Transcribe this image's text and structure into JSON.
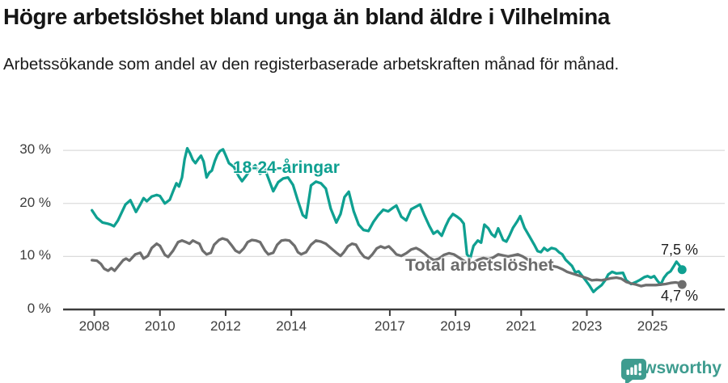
{
  "header": {
    "title": "Högre arbetslöshet bland unga än bland äldre i Vilhelmina",
    "subtitle": "Arbetssökande som andel av den registerbaserade arbetskraften månad för månad."
  },
  "chart_data": {
    "type": "line",
    "title": "Högre arbetslöshet bland unga än bland äldre i Vilhelmina",
    "subtitle": "Arbetssökande som andel av den registerbaserade arbetskraften månad för månad.",
    "unit": "%",
    "grid": true,
    "legend_position": "inline-labels",
    "xlim": [
      2007.05,
      2027.2
    ],
    "ylim": [
      0,
      32
    ],
    "yticks": [
      {
        "value": 0,
        "label": "0 %"
      },
      {
        "value": 10,
        "label": "10 %"
      },
      {
        "value": 20,
        "label": "20 %"
      },
      {
        "value": 30,
        "label": "30 %"
      }
    ],
    "xticks": [
      {
        "value": 2008,
        "label": "2008"
      },
      {
        "value": 2010,
        "label": "2010"
      },
      {
        "value": 2012,
        "label": "2012"
      },
      {
        "value": 2014,
        "label": "2014"
      },
      {
        "value": 2017,
        "label": "2017"
      },
      {
        "value": 2019,
        "label": "2019"
      },
      {
        "value": 2021,
        "label": "2021"
      },
      {
        "value": 2023,
        "label": "2023"
      },
      {
        "value": 2025,
        "label": "2025"
      }
    ],
    "colors": {
      "young": "#0FA091",
      "total": "#6E6E6E",
      "gridline": "#DBDBDB",
      "axis": "#3C3C3C"
    },
    "series": [
      {
        "name": "18-24-åringar",
        "color": "#0FA091",
        "end_label": "7,5 %",
        "end_value": 7.5,
        "points": [
          [
            2007.93,
            18.7
          ],
          [
            2008.08,
            17.3
          ],
          [
            2008.25,
            16.4
          ],
          [
            2008.4,
            16.2
          ],
          [
            2008.5,
            16.0
          ],
          [
            2008.6,
            15.7
          ],
          [
            2008.72,
            16.8
          ],
          [
            2008.85,
            18.5
          ],
          [
            2008.95,
            19.8
          ],
          [
            2009.1,
            20.6
          ],
          [
            2009.27,
            18.4
          ],
          [
            2009.4,
            19.8
          ],
          [
            2009.5,
            21.0
          ],
          [
            2009.6,
            20.4
          ],
          [
            2009.75,
            21.3
          ],
          [
            2009.9,
            21.6
          ],
          [
            2010.0,
            21.4
          ],
          [
            2010.15,
            20.0
          ],
          [
            2010.3,
            20.7
          ],
          [
            2010.4,
            22.3
          ],
          [
            2010.5,
            23.8
          ],
          [
            2010.58,
            23.2
          ],
          [
            2010.67,
            24.9
          ],
          [
            2010.75,
            28.3
          ],
          [
            2010.83,
            30.4
          ],
          [
            2010.92,
            29.4
          ],
          [
            2011.0,
            28.2
          ],
          [
            2011.08,
            27.6
          ],
          [
            2011.17,
            28.4
          ],
          [
            2011.25,
            29.0
          ],
          [
            2011.33,
            27.9
          ],
          [
            2011.42,
            24.9
          ],
          [
            2011.5,
            25.8
          ],
          [
            2011.58,
            26.2
          ],
          [
            2011.67,
            28.0
          ],
          [
            2011.75,
            29.2
          ],
          [
            2011.83,
            29.9
          ],
          [
            2011.92,
            30.2
          ],
          [
            2012.0,
            29.1
          ],
          [
            2012.1,
            27.6
          ],
          [
            2012.25,
            26.9
          ],
          [
            2012.4,
            25.1
          ],
          [
            2012.5,
            24.2
          ],
          [
            2012.6,
            25.0
          ],
          [
            2012.75,
            26.3
          ],
          [
            2012.9,
            27.2
          ],
          [
            2013.05,
            25.6
          ],
          [
            2013.2,
            26.4
          ],
          [
            2013.45,
            22.3
          ],
          [
            2013.6,
            24.0
          ],
          [
            2013.75,
            24.7
          ],
          [
            2013.9,
            24.9
          ],
          [
            2014.05,
            23.5
          ],
          [
            2014.2,
            20.5
          ],
          [
            2014.35,
            17.8
          ],
          [
            2014.45,
            17.3
          ],
          [
            2014.6,
            23.4
          ],
          [
            2014.75,
            24.1
          ],
          [
            2014.9,
            23.8
          ],
          [
            2015.05,
            22.8
          ],
          [
            2015.2,
            19.0
          ],
          [
            2015.37,
            16.4
          ],
          [
            2015.5,
            18.0
          ],
          [
            2015.62,
            21.2
          ],
          [
            2015.75,
            22.2
          ],
          [
            2015.9,
            18.5
          ],
          [
            2016.05,
            16.0
          ],
          [
            2016.2,
            15.0
          ],
          [
            2016.35,
            14.8
          ],
          [
            2016.5,
            16.5
          ],
          [
            2016.65,
            17.8
          ],
          [
            2016.8,
            18.8
          ],
          [
            2016.95,
            18.5
          ],
          [
            2017.1,
            19.2
          ],
          [
            2017.2,
            19.6
          ],
          [
            2017.35,
            17.5
          ],
          [
            2017.5,
            16.8
          ],
          [
            2017.65,
            18.9
          ],
          [
            2017.8,
            19.4
          ],
          [
            2017.92,
            19.8
          ],
          [
            2018.05,
            17.8
          ],
          [
            2018.2,
            15.8
          ],
          [
            2018.33,
            14.3
          ],
          [
            2018.45,
            14.8
          ],
          [
            2018.58,
            13.9
          ],
          [
            2018.7,
            15.7
          ],
          [
            2018.8,
            17.0
          ],
          [
            2018.92,
            18.0
          ],
          [
            2019.05,
            17.5
          ],
          [
            2019.15,
            17.0
          ],
          [
            2019.25,
            16.2
          ],
          [
            2019.35,
            10.4
          ],
          [
            2019.45,
            9.7
          ],
          [
            2019.55,
            12.0
          ],
          [
            2019.68,
            13.0
          ],
          [
            2019.78,
            12.6
          ],
          [
            2019.88,
            16.0
          ],
          [
            2020.0,
            15.3
          ],
          [
            2020.1,
            14.2
          ],
          [
            2020.2,
            13.7
          ],
          [
            2020.3,
            15.3
          ],
          [
            2020.45,
            13.1
          ],
          [
            2020.55,
            12.8
          ],
          [
            2020.65,
            14.0
          ],
          [
            2020.75,
            15.4
          ],
          [
            2020.88,
            16.6
          ],
          [
            2020.97,
            17.6
          ],
          [
            2021.1,
            15.4
          ],
          [
            2021.25,
            13.8
          ],
          [
            2021.4,
            12.2
          ],
          [
            2021.5,
            11.0
          ],
          [
            2021.6,
            10.8
          ],
          [
            2021.7,
            11.6
          ],
          [
            2021.8,
            11.1
          ],
          [
            2021.92,
            11.6
          ],
          [
            2022.05,
            11.4
          ],
          [
            2022.15,
            10.8
          ],
          [
            2022.25,
            10.4
          ],
          [
            2022.35,
            9.4
          ],
          [
            2022.45,
            8.8
          ],
          [
            2022.55,
            8.2
          ],
          [
            2022.65,
            7.0
          ],
          [
            2022.75,
            7.2
          ],
          [
            2022.85,
            6.4
          ],
          [
            2022.95,
            5.6
          ],
          [
            2023.07,
            4.6
          ],
          [
            2023.2,
            3.3
          ],
          [
            2023.3,
            3.9
          ],
          [
            2023.45,
            4.6
          ],
          [
            2023.57,
            5.6
          ],
          [
            2023.65,
            6.6
          ],
          [
            2023.77,
            7.1
          ],
          [
            2023.9,
            6.8
          ],
          [
            2024.1,
            6.9
          ],
          [
            2024.2,
            5.5
          ],
          [
            2024.35,
            4.8
          ],
          [
            2024.5,
            5.2
          ],
          [
            2024.62,
            5.6
          ],
          [
            2024.75,
            6.1
          ],
          [
            2024.85,
            6.3
          ],
          [
            2024.95,
            6.0
          ],
          [
            2025.05,
            6.3
          ],
          [
            2025.15,
            5.4
          ],
          [
            2025.25,
            4.7
          ],
          [
            2025.35,
            6.0
          ],
          [
            2025.45,
            6.8
          ],
          [
            2025.55,
            7.2
          ],
          [
            2025.65,
            8.2
          ],
          [
            2025.73,
            9.0
          ],
          [
            2025.82,
            8.3
          ],
          [
            2025.9,
            7.5
          ]
        ]
      },
      {
        "name": "Total arbetslöshet",
        "color": "#6E6E6E",
        "end_label": "4,7 %",
        "end_value": 4.7,
        "points": [
          [
            2007.93,
            9.3
          ],
          [
            2008.08,
            9.2
          ],
          [
            2008.2,
            8.6
          ],
          [
            2008.3,
            7.7
          ],
          [
            2008.42,
            7.3
          ],
          [
            2008.52,
            7.8
          ],
          [
            2008.62,
            7.3
          ],
          [
            2008.75,
            8.3
          ],
          [
            2008.88,
            9.3
          ],
          [
            2008.97,
            9.6
          ],
          [
            2009.07,
            9.2
          ],
          [
            2009.25,
            10.4
          ],
          [
            2009.4,
            10.7
          ],
          [
            2009.5,
            9.6
          ],
          [
            2009.63,
            10.1
          ],
          [
            2009.75,
            11.6
          ],
          [
            2009.9,
            12.4
          ],
          [
            2010.0,
            12.0
          ],
          [
            2010.15,
            10.3
          ],
          [
            2010.25,
            9.9
          ],
          [
            2010.4,
            11.1
          ],
          [
            2010.55,
            12.7
          ],
          [
            2010.67,
            13.0
          ],
          [
            2010.8,
            12.7
          ],
          [
            2010.9,
            12.4
          ],
          [
            2011.0,
            13.0
          ],
          [
            2011.1,
            12.7
          ],
          [
            2011.2,
            12.4
          ],
          [
            2011.3,
            11.1
          ],
          [
            2011.42,
            10.4
          ],
          [
            2011.55,
            10.7
          ],
          [
            2011.65,
            12.2
          ],
          [
            2011.8,
            13.1
          ],
          [
            2011.9,
            13.4
          ],
          [
            2012.05,
            13.1
          ],
          [
            2012.17,
            12.2
          ],
          [
            2012.3,
            11.1
          ],
          [
            2012.42,
            10.7
          ],
          [
            2012.55,
            11.5
          ],
          [
            2012.67,
            12.7
          ],
          [
            2012.8,
            13.1
          ],
          [
            2012.92,
            13.0
          ],
          [
            2013.05,
            12.7
          ],
          [
            2013.2,
            11.1
          ],
          [
            2013.3,
            10.4
          ],
          [
            2013.45,
            10.7
          ],
          [
            2013.57,
            12.2
          ],
          [
            2013.7,
            13.0
          ],
          [
            2013.82,
            13.1
          ],
          [
            2013.94,
            13.0
          ],
          [
            2014.1,
            12.0
          ],
          [
            2014.2,
            10.8
          ],
          [
            2014.3,
            10.4
          ],
          [
            2014.45,
            10.8
          ],
          [
            2014.6,
            12.2
          ],
          [
            2014.75,
            13.0
          ],
          [
            2014.9,
            12.8
          ],
          [
            2015.05,
            12.4
          ],
          [
            2015.2,
            11.6
          ],
          [
            2015.37,
            10.7
          ],
          [
            2015.5,
            10.1
          ],
          [
            2015.6,
            10.8
          ],
          [
            2015.72,
            11.9
          ],
          [
            2015.85,
            12.4
          ],
          [
            2015.97,
            12.2
          ],
          [
            2016.1,
            10.8
          ],
          [
            2016.22,
            9.9
          ],
          [
            2016.35,
            9.6
          ],
          [
            2016.47,
            10.4
          ],
          [
            2016.6,
            11.5
          ],
          [
            2016.72,
            11.9
          ],
          [
            2016.85,
            11.6
          ],
          [
            2016.97,
            11.9
          ],
          [
            2017.1,
            11.1
          ],
          [
            2017.2,
            10.4
          ],
          [
            2017.35,
            10.1
          ],
          [
            2017.5,
            10.6
          ],
          [
            2017.65,
            11.3
          ],
          [
            2017.8,
            11.6
          ],
          [
            2017.92,
            11.2
          ],
          [
            2018.05,
            10.6
          ],
          [
            2018.2,
            9.8
          ],
          [
            2018.35,
            9.3
          ],
          [
            2018.5,
            9.6
          ],
          [
            2018.65,
            10.3
          ],
          [
            2018.8,
            10.6
          ],
          [
            2018.95,
            10.4
          ],
          [
            2019.1,
            9.8
          ],
          [
            2019.25,
            9.2
          ],
          [
            2019.4,
            8.7
          ],
          [
            2019.55,
            8.9
          ],
          [
            2019.7,
            9.4
          ],
          [
            2019.85,
            9.7
          ],
          [
            2020.0,
            9.5
          ],
          [
            2020.15,
            9.8
          ],
          [
            2020.3,
            10.4
          ],
          [
            2020.45,
            10.2
          ],
          [
            2020.6,
            10.0
          ],
          [
            2020.75,
            10.2
          ],
          [
            2020.9,
            10.4
          ],
          [
            2021.05,
            10.0
          ],
          [
            2021.2,
            9.4
          ],
          [
            2021.35,
            8.9
          ],
          [
            2021.5,
            8.5
          ],
          [
            2021.65,
            8.6
          ],
          [
            2021.8,
            8.4
          ],
          [
            2021.95,
            8.2
          ],
          [
            2022.1,
            8.0
          ],
          [
            2022.25,
            7.6
          ],
          [
            2022.4,
            7.1
          ],
          [
            2022.55,
            6.8
          ],
          [
            2022.7,
            6.5
          ],
          [
            2022.85,
            6.2
          ],
          [
            2023.0,
            5.9
          ],
          [
            2023.15,
            5.5
          ],
          [
            2023.3,
            5.6
          ],
          [
            2023.45,
            5.5
          ],
          [
            2023.6,
            5.7
          ],
          [
            2023.75,
            5.9
          ],
          [
            2023.9,
            6.0
          ],
          [
            2024.05,
            5.8
          ],
          [
            2024.2,
            5.2
          ],
          [
            2024.35,
            4.9
          ],
          [
            2024.5,
            4.7
          ],
          [
            2024.65,
            4.4
          ],
          [
            2024.8,
            4.6
          ],
          [
            2024.95,
            4.6
          ],
          [
            2025.1,
            4.6
          ],
          [
            2025.25,
            4.7
          ],
          [
            2025.4,
            4.8
          ],
          [
            2025.55,
            5.0
          ],
          [
            2025.7,
            5.1
          ],
          [
            2025.8,
            5.0
          ],
          [
            2025.9,
            4.7
          ]
        ]
      }
    ]
  },
  "footer": {
    "brand": "Newsworthy",
    "brand_color": "#3E9C8F",
    "logo_icon": "bar-chart-speech-bubble-icon"
  }
}
